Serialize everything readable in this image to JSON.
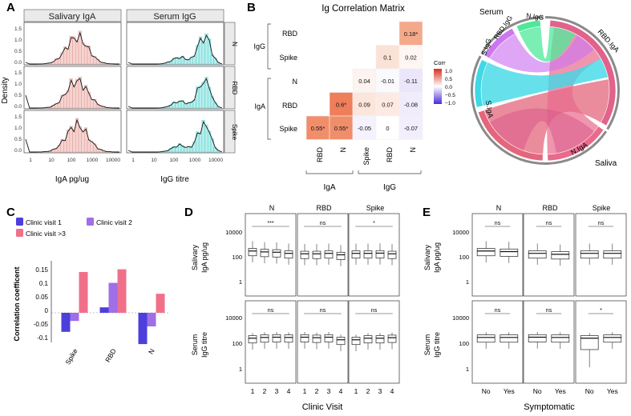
{
  "panels": {
    "A": {
      "letter": "A",
      "strips": [
        "Salivary IgA",
        "Serum IgG"
      ],
      "rows": [
        "N",
        "RBD",
        "Spike"
      ],
      "ylabel": "Density",
      "yticks": [
        "0.0",
        "0.5",
        "1.0",
        "1.5"
      ],
      "xticks": [
        "1",
        "10",
        "100",
        "1000",
        "10000"
      ],
      "xlabels": [
        "IgA pg/ug",
        "IgG titre"
      ],
      "colors": {
        "iga": "#e8a09a",
        "igg": "#5fd6d2"
      }
    },
    "B": {
      "letter": "B",
      "title": "Ig Correlation Matrix",
      "row_labels": [
        "RBD",
        "Spike",
        "N",
        "RBD",
        "Spike"
      ],
      "group_labels": [
        "IgG",
        "IgA"
      ],
      "col_labels": [
        "RBD",
        "N",
        "Spike",
        "RBD",
        "N"
      ],
      "col_groups": [
        "IgA",
        "IgG"
      ],
      "cells": [
        {
          "r": 0,
          "c": 4,
          "v": "0.18*",
          "col": "#f3a98a"
        },
        {
          "r": 1,
          "c": 3,
          "v": "0.1",
          "col": "#fbe2d6"
        },
        {
          "r": 1,
          "c": 4,
          "v": "0.02",
          "col": "#fdf6f3"
        },
        {
          "r": 2,
          "c": 2,
          "v": "0.04",
          "col": "#fdf3ef"
        },
        {
          "r": 2,
          "c": 3,
          "v": "-0.01",
          "col": "#fafafe"
        },
        {
          "r": 2,
          "c": 4,
          "v": "-0.11",
          "col": "#ece6fb"
        },
        {
          "r": 3,
          "c": 1,
          "v": "0.6*",
          "col": "#ef7e5b"
        },
        {
          "r": 3,
          "c": 2,
          "v": "0.09",
          "col": "#fce6dc"
        },
        {
          "r": 3,
          "c": 3,
          "v": "0.07",
          "col": "#fdebe3"
        },
        {
          "r": 3,
          "c": 4,
          "v": "-0.08",
          "col": "#f1ecfc"
        },
        {
          "r": 4,
          "c": 0,
          "v": "0.55*",
          "col": "#f08e6c"
        },
        {
          "r": 4,
          "c": 1,
          "v": "0.55*",
          "col": "#f08e6c"
        },
        {
          "r": 4,
          "c": 2,
          "v": "-0.05",
          "col": "#f5f2fd"
        },
        {
          "r": 4,
          "c": 3,
          "v": "0",
          "col": "#ffffff"
        },
        {
          "r": 4,
          "c": 4,
          "v": "-0.07",
          "col": "#f2eefc"
        }
      ],
      "legend_title": "Corr",
      "legend_ticks": [
        "1.0",
        "0.5",
        "0.0",
        "−0.5",
        "−1.0"
      ]
    },
    "chord": {
      "labels": [
        "Serum",
        "N.IgG",
        "RBD.IgG",
        "S.IgG",
        "RBD.IgA",
        "S.IgA",
        "N.IgA",
        "Saliva"
      ]
    },
    "C": {
      "letter": "C",
      "ylabel": "Correlation coefficent",
      "yticks": [
        "0.15",
        "0.1",
        "0.05",
        "0",
        "-0.05",
        "-0.1"
      ]
    },
    "D": {
      "letter": "D",
      "strips": [
        "N",
        "RBD",
        "Spike"
      ],
      "top_sig": [
        "***",
        "ns",
        "*"
      ],
      "bottom_sig": [
        "ns",
        "ns",
        "ns"
      ],
      "ylabel_top": [
        "Salivary",
        "IgA pg/ug"
      ],
      "ylabel_bottom": [
        "Serum",
        "IgG titre"
      ],
      "yticks": [
        "10000",
        "100",
        "1"
      ],
      "xticks": [
        "1",
        "2",
        "3",
        "4"
      ],
      "xlabel": "Clinic Visit"
    },
    "E": {
      "letter": "E",
      "strips": [
        "N",
        "RBD",
        "Spike"
      ],
      "top_sig": [
        "ns",
        "ns",
        "ns"
      ],
      "bottom_sig": [
        "ns",
        "ns",
        "*"
      ],
      "ylabel_top": [
        "Salivary",
        "IgA pg/ug"
      ],
      "ylabel_bottom": [
        "Serum",
        "IgG titre"
      ],
      "yticks": [
        "10000",
        "100",
        "1"
      ],
      "xticks": [
        "No",
        "Yes"
      ],
      "xlabel": "Symptomatic"
    }
  },
  "chart_data": [
    {
      "type": "bar",
      "title": "",
      "xlabel": "",
      "ylabel": "Correlation coefficent",
      "ylim": [
        -0.12,
        0.17
      ],
      "categories": [
        "Spike",
        "RBD",
        "N"
      ],
      "series": [
        {
          "name": "Clinic visit 1",
          "color": "#4d3fdc",
          "values": [
            -0.07,
            0.02,
            -0.115
          ]
        },
        {
          "name": "Clinic visit 2",
          "color": "#a06ee6",
          "values": [
            -0.03,
            0.11,
            -0.05
          ]
        },
        {
          "name": "Clinic visit >3",
          "color": "#f0708a",
          "values": [
            0.15,
            0.16,
            0.07
          ]
        }
      ],
      "legend": "top"
    },
    {
      "type": "heatmap",
      "title": "Ig Correlation Matrix",
      "rows": [
        "IgG RBD",
        "IgG Spike",
        "IgA N",
        "IgA RBD",
        "IgA Spike"
      ],
      "columns": [
        "IgA RBD",
        "IgA N",
        "IgG Spike",
        "IgG RBD",
        "IgG N"
      ],
      "values": [
        [
          null,
          null,
          null,
          null,
          0.18
        ],
        [
          null,
          null,
          null,
          0.1,
          0.02
        ],
        [
          null,
          null,
          0.04,
          -0.01,
          -0.11
        ],
        [
          null,
          0.6,
          0.09,
          0.07,
          -0.08
        ],
        [
          0.55,
          0.55,
          -0.05,
          0,
          -0.07
        ]
      ],
      "significant": [
        "IgG RBD-IgG N",
        "IgA RBD-IgA N",
        "IgA Spike-IgA RBD",
        "IgA Spike-IgA N"
      ],
      "legend": "Corr, -1.0 to 1.0"
    },
    {
      "type": "bar",
      "subtype": "boxplot",
      "title": "Clinic Visit",
      "facets": [
        "N",
        "RBD",
        "Spike"
      ],
      "categories": [
        "1",
        "2",
        "3",
        "4"
      ],
      "rows": [
        {
          "name": "Salivary IgA pg/ug",
          "sig": [
            "***",
            "ns",
            "*"
          ],
          "medians": [
            [
              200,
              170,
              160,
              130
            ],
            [
              120,
              120,
              130,
              100
            ],
            [
              130,
              130,
              135,
              120
            ]
          ]
        },
        {
          "name": "Serum IgG titre",
          "sig": [
            "ns",
            "ns",
            "ns"
          ],
          "medians": [
            [
              200,
              230,
              240,
              230
            ],
            [
              240,
              220,
              240,
              150
            ],
            [
              150,
              200,
              200,
              220
            ]
          ]
        }
      ]
    },
    {
      "type": "bar",
      "subtype": "boxplot",
      "title": "Symptomatic",
      "facets": [
        "N",
        "RBD",
        "Spike"
      ],
      "categories": [
        "No",
        "Yes"
      ],
      "rows": [
        {
          "name": "Salivary IgA pg/ug",
          "sig": [
            "ns",
            "ns",
            "ns"
          ],
          "medians": [
            [
              200,
              180
            ],
            [
              130,
              110
            ],
            [
              130,
              130
            ]
          ]
        },
        {
          "name": "Serum IgG titre",
          "sig": [
            "ns",
            "ns",
            "*"
          ],
          "medians": [
            [
              230,
              230
            ],
            [
              240,
              230
            ],
            [
              200,
              230
            ]
          ]
        }
      ]
    }
  ]
}
